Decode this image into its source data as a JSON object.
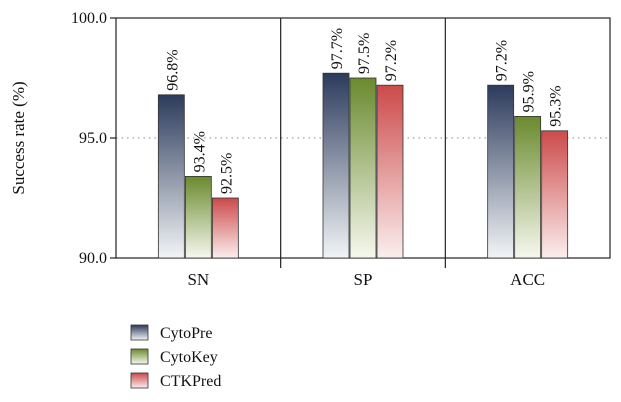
{
  "chart_data": {
    "type": "bar",
    "categories": [
      "SN",
      "SP",
      "ACC"
    ],
    "series": [
      {
        "name": "CytoPre",
        "values": [
          96.8,
          97.7,
          97.2
        ],
        "labels": [
          "96.8%",
          "97.7%",
          "97.2%"
        ],
        "color_top": "#2c3b5c",
        "color_bottom": "#f2f4f6"
      },
      {
        "name": "CytoKey",
        "values": [
          93.4,
          97.5,
          95.9
        ],
        "labels": [
          "93.4%",
          "97.5%",
          "95.9%"
        ],
        "color_top": "#6a8a2e",
        "color_bottom": "#f6f8ee"
      },
      {
        "name": "CTKPred",
        "values": [
          92.5,
          97.2,
          95.3
        ],
        "labels": [
          "92.5%",
          "97.2%",
          "95.3%"
        ],
        "color_top": "#cc4a4a",
        "color_bottom": "#fbeeee"
      }
    ],
    "ylabel": "Success rate (%)",
    "ylim": [
      90.0,
      100.0
    ],
    "yticks": [
      "90.0",
      "95.0",
      "100.0"
    ],
    "reference_line": 95.0,
    "legend_position": "bottom-left"
  }
}
